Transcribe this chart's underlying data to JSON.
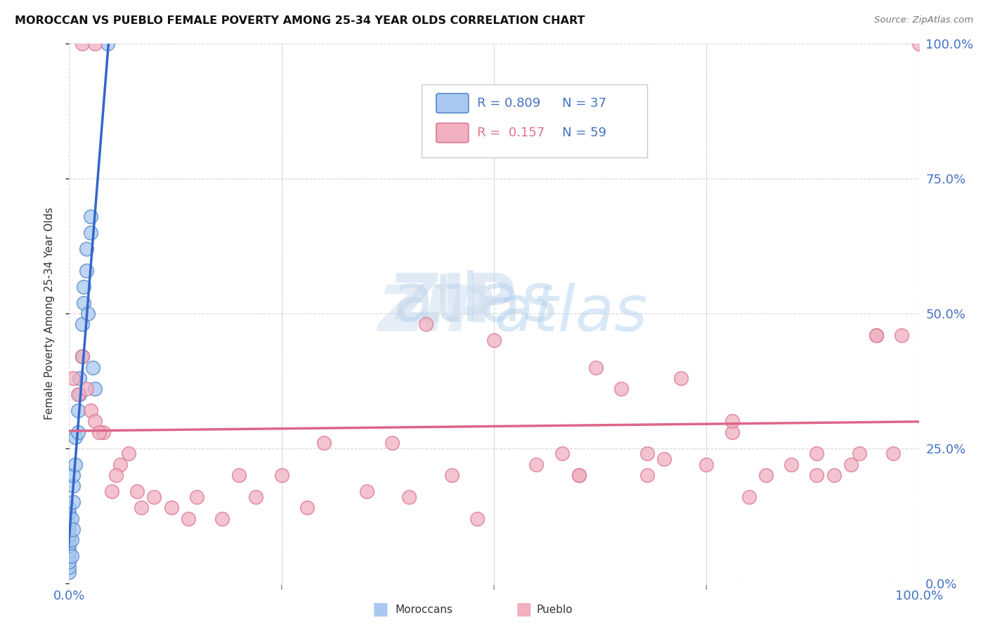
{
  "title": "MOROCCAN VS PUEBLO FEMALE POVERTY AMONG 25-34 YEAR OLDS CORRELATION CHART",
  "source": "Source: ZipAtlas.com",
  "ylabel": "Female Poverty Among 25-34 Year Olds",
  "ytick_labels": [
    "0.0%",
    "25.0%",
    "50.0%",
    "75.0%",
    "100.0%"
  ],
  "ytick_values": [
    0,
    25,
    50,
    75,
    100
  ],
  "xlim": [
    0,
    100
  ],
  "ylim": [
    0,
    100
  ],
  "watermark_zip": "ZIP",
  "watermark_atlas": "atlas",
  "legend_r1": "R = 0.809",
  "legend_n1": "N = 37",
  "legend_r2": "R =  0.157",
  "legend_n2": "N = 59",
  "color_moroccan_fill": "#a8c8f0",
  "color_moroccan_edge": "#5588cc",
  "color_pueblo_fill": "#f0b0c0",
  "color_pueblo_edge": "#dd7799",
  "color_moroccan_line": "#3366cc",
  "color_pueblo_line": "#dd6688",
  "color_axis_labels": "#4472c4",
  "color_r_blue": "#4472c4",
  "color_r_pink": "#e07090",
  "moroccan_x": [
    0.0,
    0.0,
    0.0,
    0.0,
    0.0,
    0.0,
    0.0,
    0.0,
    0.0,
    0.0,
    0.0,
    0.0,
    0.3,
    0.3,
    0.3,
    0.5,
    0.5,
    0.5,
    0.5,
    0.7,
    0.7,
    1.0,
    1.0,
    1.2,
    1.2,
    1.5,
    1.5,
    1.7,
    1.7,
    2.0,
    2.0,
    2.2,
    2.5,
    2.5,
    2.8,
    3.0,
    4.5
  ],
  "moroccan_y": [
    2,
    3,
    4,
    5,
    6,
    7,
    8,
    9,
    10,
    11,
    13,
    14,
    5,
    8,
    12,
    10,
    15,
    18,
    20,
    22,
    27,
    28,
    32,
    35,
    38,
    42,
    48,
    52,
    55,
    58,
    62,
    50,
    65,
    68,
    40,
    36,
    100
  ],
  "pueblo_x": [
    0.5,
    1.0,
    1.5,
    2.0,
    2.5,
    3.0,
    4.0,
    5.0,
    6.0,
    7.0,
    8.0,
    10.0,
    12.0,
    15.0,
    18.0,
    20.0,
    22.0,
    25.0,
    30.0,
    35.0,
    40.0,
    42.0,
    45.0,
    50.0,
    55.0,
    58.0,
    60.0,
    62.0,
    65.0,
    68.0,
    70.0,
    72.0,
    75.0,
    78.0,
    80.0,
    82.0,
    85.0,
    88.0,
    90.0,
    92.0,
    93.0,
    95.0,
    97.0,
    98.0,
    100.0,
    3.5,
    5.5,
    8.5,
    14.0,
    28.0,
    38.0,
    48.0,
    68.0,
    78.0,
    88.0,
    95.0,
    60.0,
    1.5,
    3.0
  ],
  "pueblo_y": [
    38,
    35,
    42,
    36,
    32,
    30,
    28,
    17,
    22,
    24,
    17,
    16,
    14,
    16,
    12,
    20,
    16,
    20,
    26,
    17,
    16,
    48,
    20,
    45,
    22,
    24,
    20,
    40,
    36,
    20,
    23,
    38,
    22,
    28,
    16,
    20,
    22,
    20,
    20,
    22,
    24,
    46,
    24,
    46,
    100,
    28,
    20,
    14,
    12,
    14,
    26,
    12,
    24,
    30,
    24,
    46,
    20,
    100,
    100
  ],
  "background_color": "#ffffff",
  "grid_color": "#cccccc"
}
